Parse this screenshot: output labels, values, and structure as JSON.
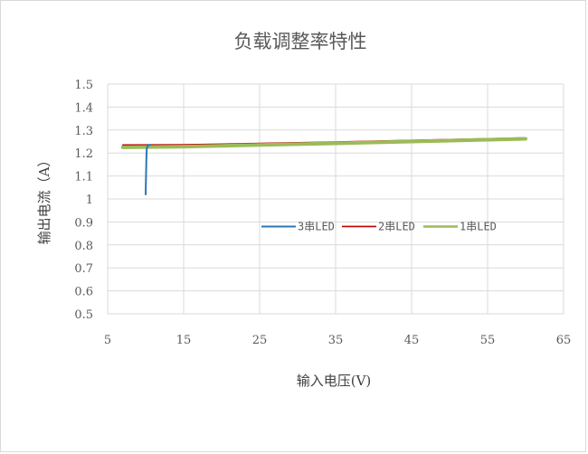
{
  "chart_data": {
    "type": "line",
    "title": "负载调整率特性",
    "xlabel": "输入电压(V)",
    "ylabel": "输出电流（A）",
    "xlim": [
      5,
      65
    ],
    "ylim": [
      0.5,
      1.5
    ],
    "x_ticks": [
      5,
      15,
      25,
      35,
      45,
      55,
      65
    ],
    "y_ticks": [
      "0.5",
      "0.6",
      "0.7",
      "0.8",
      "0.9",
      "1",
      "1.1",
      "1.2",
      "1.3",
      "1.4",
      "1.5"
    ],
    "grid": true,
    "legend_position": "center-right",
    "series": [
      {
        "name": "3串LED",
        "color": "#2E75B6",
        "stroke": 2,
        "points": [
          [
            10.0,
            1.02
          ],
          [
            10.05,
            1.1
          ],
          [
            10.1,
            1.18
          ],
          [
            10.15,
            1.22
          ],
          [
            10.3,
            1.235
          ],
          [
            10.6,
            1.235
          ]
        ]
      },
      {
        "name": "2串LED",
        "color": "#C00000",
        "stroke": 1.6,
        "points": [
          [
            7,
            1.235
          ],
          [
            15,
            1.236
          ],
          [
            25,
            1.242
          ],
          [
            35,
            1.248
          ],
          [
            45,
            1.255
          ],
          [
            55,
            1.262
          ],
          [
            60,
            1.266
          ]
        ]
      },
      {
        "name": "1串LED",
        "color": "#9BBB59",
        "stroke": 4,
        "points": [
          [
            7,
            1.225
          ],
          [
            15,
            1.228
          ],
          [
            25,
            1.235
          ],
          [
            35,
            1.242
          ],
          [
            45,
            1.25
          ],
          [
            55,
            1.258
          ],
          [
            60,
            1.262
          ]
        ]
      }
    ]
  }
}
